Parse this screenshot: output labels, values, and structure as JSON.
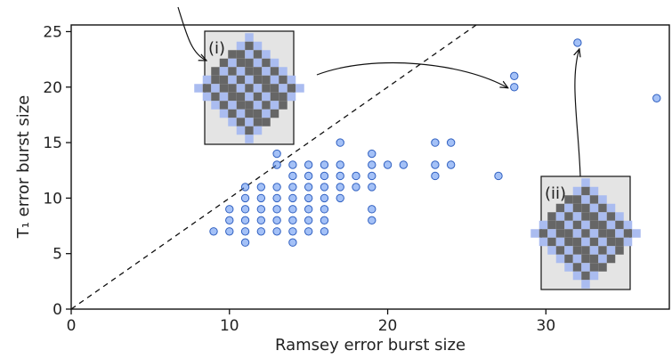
{
  "chart_data": {
    "type": "scatter",
    "xlabel": "Ramsey error burst size",
    "ylabel": "T₁ error burst size",
    "annotations": [
      "(i)",
      "(ii)"
    ],
    "series": [
      {
        "color": "#5a8ef0",
        "x": [
          9,
          10,
          10,
          10,
          11,
          11,
          11,
          11,
          11,
          11,
          12,
          12,
          12,
          12,
          12,
          13,
          13,
          13,
          13,
          13,
          13,
          13,
          14,
          14,
          14,
          14,
          14,
          14,
          14,
          14,
          15,
          15,
          15,
          15,
          15,
          15,
          15,
          16,
          16,
          16,
          16,
          16,
          16,
          16,
          17,
          17,
          17,
          17,
          17,
          18,
          18,
          19,
          19,
          19,
          19,
          19,
          19,
          20,
          21,
          23,
          23,
          23,
          24,
          24,
          27,
          28,
          28,
          32,
          37
        ],
        "values": [
          7,
          7,
          8,
          9,
          6,
          7,
          8,
          9,
          10,
          11,
          7,
          8,
          9,
          10,
          11,
          7,
          8,
          9,
          10,
          11,
          13,
          14,
          6,
          7,
          8,
          9,
          10,
          11,
          12,
          13,
          7,
          8,
          9,
          10,
          11,
          12,
          13,
          7,
          8,
          9,
          10,
          11,
          12,
          13,
          10,
          11,
          12,
          13,
          15,
          11,
          12,
          8,
          9,
          11,
          12,
          13,
          14,
          13,
          13,
          12,
          13,
          15,
          13,
          15,
          12,
          20,
          21,
          24,
          19
        ]
      }
    ],
    "xlim": [
      0,
      37.8
    ],
    "ylim": [
      0,
      25.6
    ],
    "xticks": [
      0,
      10,
      20,
      30
    ],
    "yticks": [
      0,
      5,
      10,
      15,
      20,
      25
    ]
  }
}
